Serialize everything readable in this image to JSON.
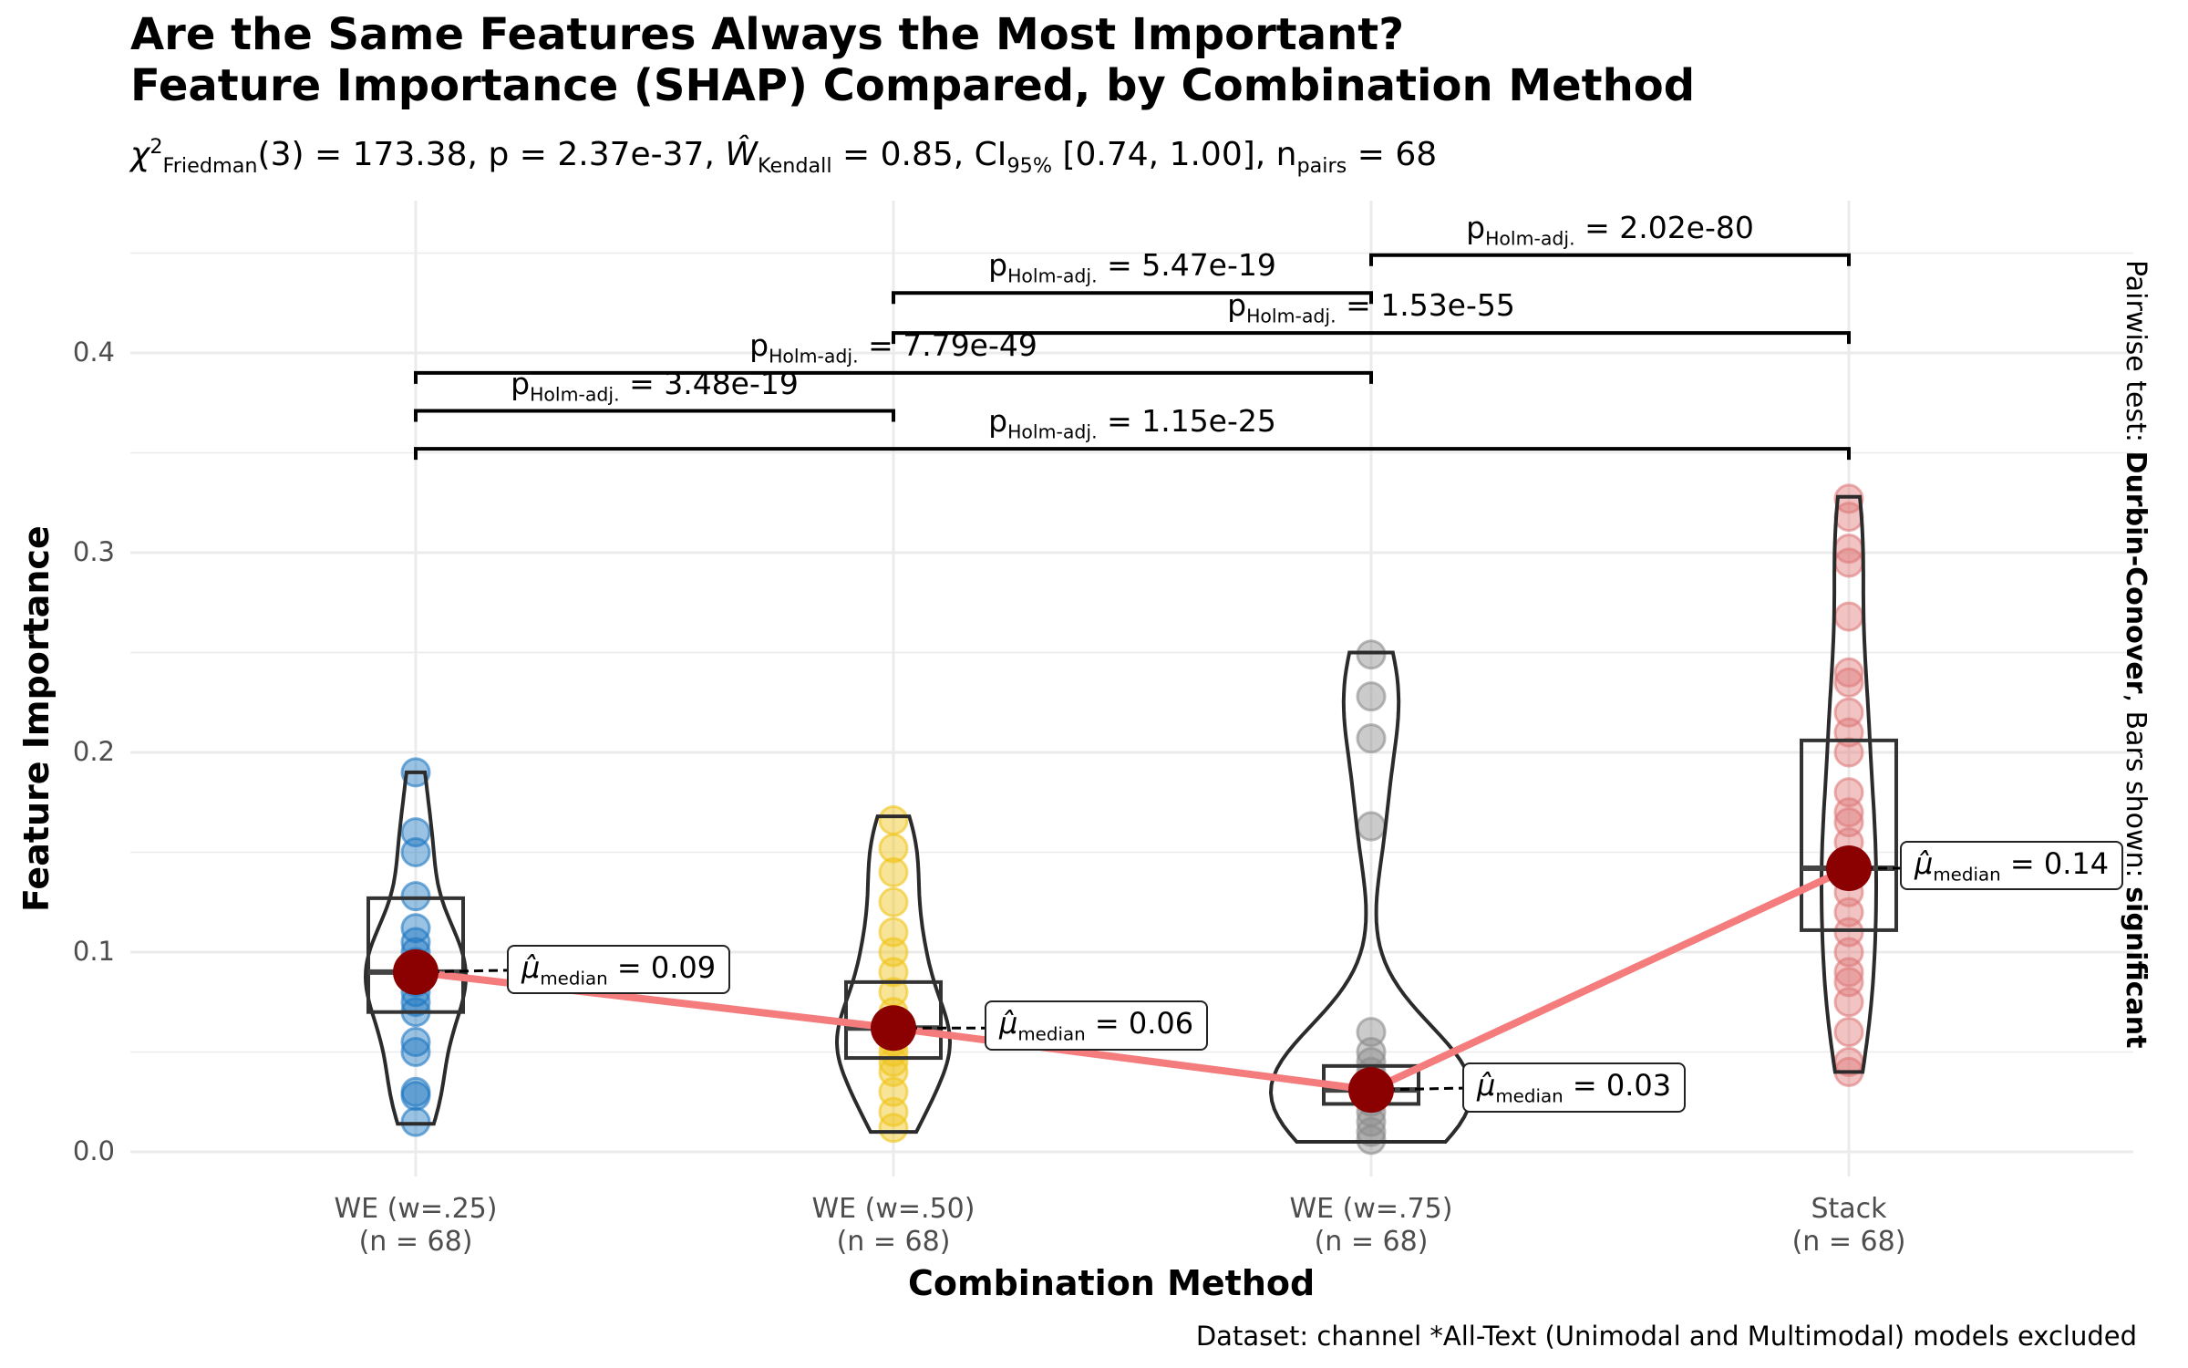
{
  "title": {
    "line1": "Are the Same Features Always the Most Important?",
    "line2": "Feature Importance (SHAP) Compared, by Combination Method"
  },
  "subtitle": {
    "chi_sub": "Friedman",
    "chi_sup": "2",
    "chi_df": "(3) = 173.38, p = 2.37e-37, ",
    "w_sub": "Kendall",
    "w_value": " = 0.85, CI",
    "ci_sub": "95%",
    "ci_value": " [0.74, 1.00], n",
    "n_sub": "pairs",
    "n_value": " = 68"
  },
  "axes": {
    "xlabel": "Combination Method",
    "ylabel": "Feature Importance",
    "yticks": [
      "0.0",
      "0.1",
      "0.2",
      "0.3",
      "0.4"
    ]
  },
  "caption": "Dataset:  channel *All-Text (Unimodal and Multimodal) models excluded",
  "right_note": {
    "prefix": "Pairwise test: ",
    "test": "Durbin-Conover",
    "middle": ", Bars shown: ",
    "shown": "significant"
  },
  "pairwise": [
    {
      "label_p": "p",
      "label_sub": "Holm-adj.",
      "label_val": " = 2.02e-80"
    },
    {
      "label_p": "p",
      "label_sub": "Holm-adj.",
      "label_val": " = 5.47e-19"
    },
    {
      "label_p": "p",
      "label_sub": "Holm-adj.",
      "label_val": " = 1.53e-55"
    },
    {
      "label_p": "p",
      "label_sub": "Holm-adj.",
      "label_val": " = 7.79e-49"
    },
    {
      "label_p": "p",
      "label_sub": "Holm-adj.",
      "label_val": " = 3.48e-19"
    },
    {
      "label_p": "p",
      "label_sub": "Holm-adj.",
      "label_val": " = 1.15e-25"
    }
  ],
  "medians": [
    {
      "sub": "median",
      "val": " = 0.09"
    },
    {
      "sub": "median",
      "val": " = 0.06"
    },
    {
      "sub": "median",
      "val": " = 0.03"
    },
    {
      "sub": "median",
      "val": " = 0.14"
    }
  ],
  "chart_data": {
    "type": "violin-box",
    "title": "Are the Same Features Always the Most Important? Feature Importance (SHAP) Compared, by Combination Method",
    "xlabel": "Combination Method",
    "ylabel": "Feature Importance",
    "ylim": [
      0,
      0.45
    ],
    "grid": true,
    "categories": [
      "WE (w=.25)",
      "WE (w=.50)",
      "WE (w=.75)",
      "Stack"
    ],
    "n_labels": [
      "(n = 68)",
      "(n = 68)",
      "(n = 68)",
      "(n = 68)"
    ],
    "colors": [
      "#1f78c1",
      "#f0c419",
      "#8c8c8c",
      "#e07a7a"
    ],
    "median_line_color": "#f47c7c",
    "median_point_color": "#8b0000",
    "medians": [
      0.09,
      0.06,
      0.03,
      0.14
    ],
    "boxes": [
      {
        "q1": 0.07,
        "median": 0.09,
        "q3": 0.127
      },
      {
        "q1": 0.047,
        "median": 0.062,
        "q3": 0.085
      },
      {
        "q1": 0.024,
        "median": 0.031,
        "q3": 0.043
      },
      {
        "q1": 0.111,
        "median": 0.142,
        "q3": 0.206
      }
    ],
    "points": [
      [
        0.19,
        0.16,
        0.15,
        0.128,
        0.112,
        0.105,
        0.1,
        0.095,
        0.09,
        0.085,
        0.08,
        0.075,
        0.07,
        0.055,
        0.05,
        0.03,
        0.028,
        0.015
      ],
      [
        0.166,
        0.152,
        0.14,
        0.125,
        0.11,
        0.1,
        0.09,
        0.08,
        0.07,
        0.065,
        0.06,
        0.055,
        0.05,
        0.045,
        0.04,
        0.03,
        0.02,
        0.012
      ],
      [
        0.249,
        0.228,
        0.207,
        0.163,
        0.06,
        0.05,
        0.045,
        0.04,
        0.035,
        0.03,
        0.025,
        0.02,
        0.015,
        0.01,
        0.006
      ],
      [
        0.327,
        0.318,
        0.302,
        0.295,
        0.268,
        0.24,
        0.235,
        0.22,
        0.21,
        0.2,
        0.18,
        0.17,
        0.165,
        0.155,
        0.145,
        0.14,
        0.13,
        0.12,
        0.11,
        0.1,
        0.09,
        0.085,
        0.075,
        0.06,
        0.045,
        0.04
      ]
    ],
    "violin_range": [
      [
        0.014,
        0.19
      ],
      [
        0.01,
        0.168
      ],
      [
        0.005,
        0.25
      ],
      [
        0.04,
        0.328
      ]
    ],
    "pairwise_brackets": [
      {
        "from": "WE (w=.75)",
        "to": "Stack",
        "y": 0.449,
        "p": "2.02e-80"
      },
      {
        "from": "WE (w=.50)",
        "to": "WE (w=.75)",
        "y": 0.43,
        "p": "5.47e-19"
      },
      {
        "from": "WE (w=.50)",
        "to": "Stack",
        "y": 0.41,
        "p": "1.53e-55"
      },
      {
        "from": "WE (w=.25)",
        "to": "WE (w=.75)",
        "y": 0.39,
        "p": "7.79e-49"
      },
      {
        "from": "WE (w=.25)",
        "to": "WE (w=.50)",
        "y": 0.371,
        "p": "3.48e-19"
      },
      {
        "from": "WE (w=.25)",
        "to": "Stack",
        "y": 0.352,
        "p": "1.15e-25"
      }
    ]
  }
}
